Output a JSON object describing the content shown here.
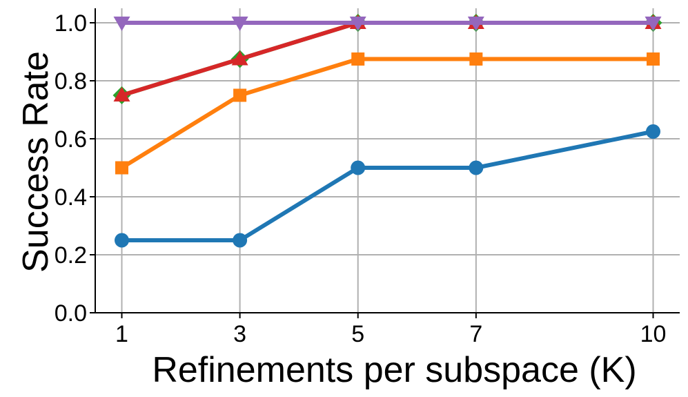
{
  "chart_data": {
    "type": "line",
    "title": "",
    "xlabel": "Refinements per subspace (K)",
    "ylabel": "Success Rate",
    "x": [
      1,
      3,
      5,
      7,
      10
    ],
    "xticks": [
      "1",
      "3",
      "5",
      "7",
      "10"
    ],
    "yticks": [
      "0.0",
      "0.2",
      "0.4",
      "0.6",
      "0.8",
      "1.0"
    ],
    "xlim": [
      0.55,
      10.45
    ],
    "ylim": [
      0.0,
      1.05
    ],
    "grid": true,
    "series": [
      {
        "color": "#1f77b4",
        "marker": "circle",
        "values": [
          0.25,
          0.25,
          0.5,
          0.5,
          0.625
        ]
      },
      {
        "color": "#ff7f0e",
        "marker": "square",
        "values": [
          0.5,
          0.75,
          0.875,
          0.875,
          0.875
        ]
      },
      {
        "color": "#2ca02c",
        "marker": "diamond",
        "values": [
          0.75,
          0.875,
          1.0,
          1.0,
          1.0
        ]
      },
      {
        "color": "#d62728",
        "marker": "triangle-up",
        "values": [
          0.75,
          0.875,
          1.0,
          1.0,
          1.0
        ]
      },
      {
        "color": "#9467bd",
        "marker": "triangle-down",
        "values": [
          1.0,
          1.0,
          1.0,
          1.0,
          1.0
        ]
      }
    ]
  }
}
